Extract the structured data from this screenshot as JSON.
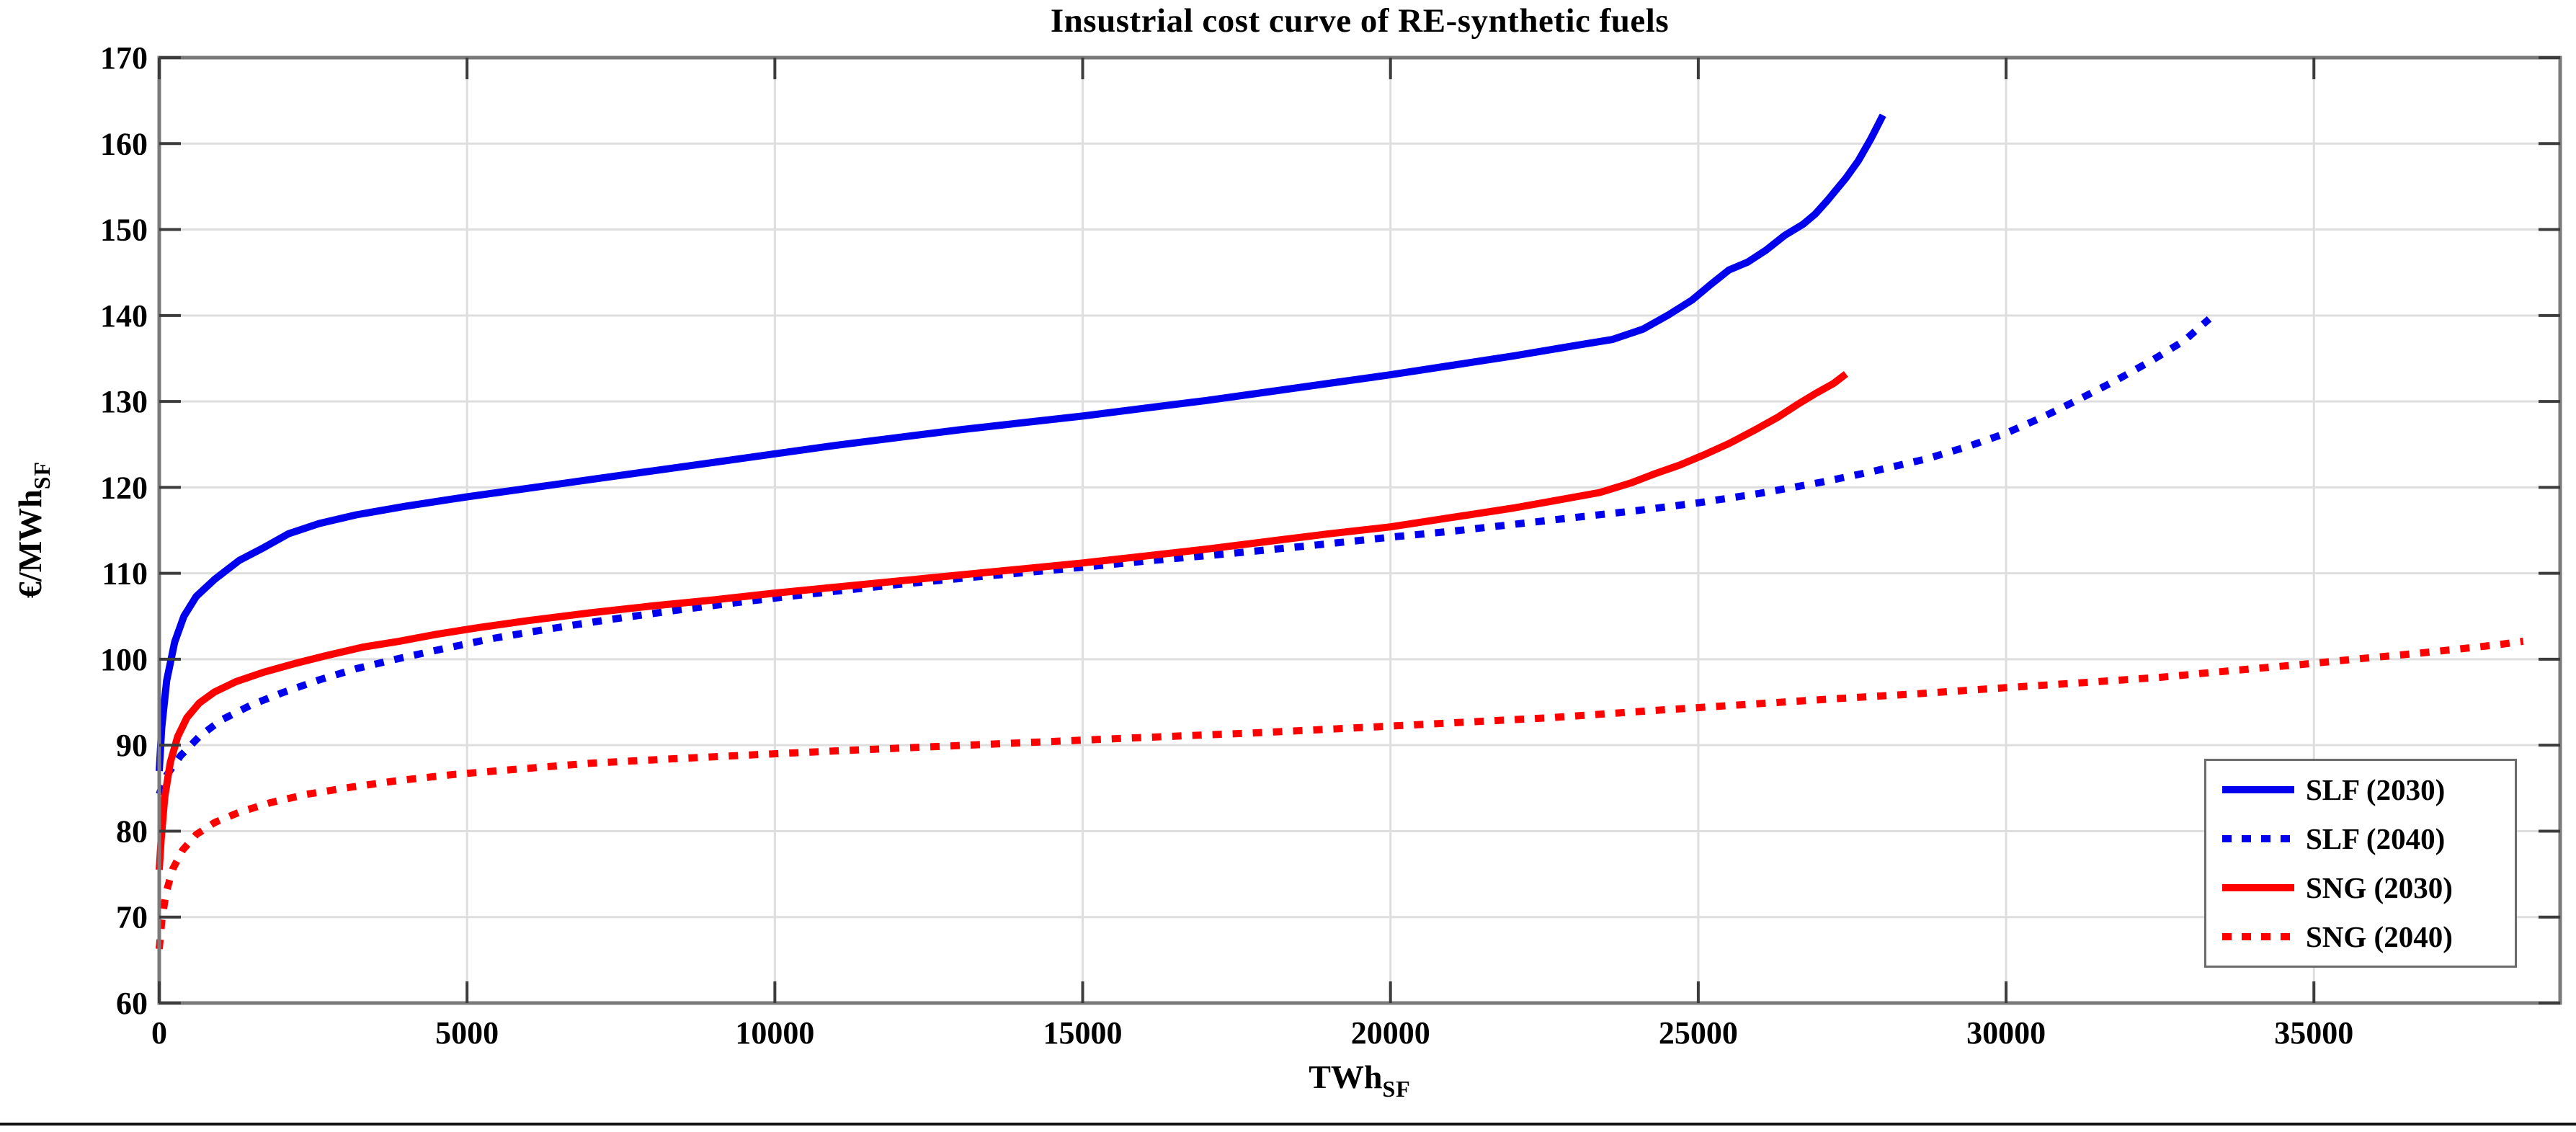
{
  "figure": {
    "background": "#ffffff"
  },
  "chart_data": {
    "type": "line",
    "title": "Insustrial cost curve of RE-synthetic fuels",
    "xlabel_main": "TWh",
    "xlabel_sub": "SF",
    "ylabel_main": "€/MWh",
    "ylabel_sub": "SF",
    "xlim": [
      0,
      39000
    ],
    "ylim": [
      60,
      170
    ],
    "xticks": [
      0,
      5000,
      10000,
      15000,
      20000,
      25000,
      30000,
      35000
    ],
    "yticks": [
      60,
      70,
      80,
      90,
      100,
      110,
      120,
      130,
      140,
      150,
      160,
      170
    ],
    "grid": true,
    "legend_position": "bottom-right",
    "colors": {
      "blue": "#0000ee",
      "red": "#ff0000",
      "grid": "#dedede",
      "axis_border": "#7a7a7a",
      "tick": "#3c3c3c",
      "text": "#000000",
      "legend_border": "#6b6b6b"
    },
    "series": [
      {
        "name": "SLF (2030)",
        "color": "blue",
        "style": "solid",
        "points": [
          [
            0,
            87
          ],
          [
            40,
            92
          ],
          [
            120,
            97.5
          ],
          [
            250,
            102
          ],
          [
            400,
            105
          ],
          [
            600,
            107.3
          ],
          [
            900,
            109.3
          ],
          [
            1300,
            111.5
          ],
          [
            1700,
            113
          ],
          [
            2100,
            114.6
          ],
          [
            2600,
            115.8
          ],
          [
            3200,
            116.8
          ],
          [
            4000,
            117.8
          ],
          [
            5000,
            118.9
          ],
          [
            6000,
            119.9
          ],
          [
            7000,
            120.9
          ],
          [
            8000,
            121.9
          ],
          [
            9000,
            122.9
          ],
          [
            10000,
            123.9
          ],
          [
            11000,
            124.9
          ],
          [
            12000,
            125.8
          ],
          [
            13000,
            126.7
          ],
          [
            14000,
            127.5
          ],
          [
            15000,
            128.3
          ],
          [
            16000,
            129.2
          ],
          [
            17000,
            130.1
          ],
          [
            18000,
            131.1
          ],
          [
            19000,
            132.1
          ],
          [
            20000,
            133.1
          ],
          [
            21000,
            134.2
          ],
          [
            22000,
            135.3
          ],
          [
            23000,
            136.5
          ],
          [
            23600,
            137.2
          ],
          [
            24100,
            138.4
          ],
          [
            24500,
            140
          ],
          [
            24900,
            141.8
          ],
          [
            25200,
            143.6
          ],
          [
            25500,
            145.3
          ],
          [
            25800,
            146.2
          ],
          [
            26100,
            147.6
          ],
          [
            26400,
            149.3
          ],
          [
            26700,
            150.6
          ],
          [
            26900,
            151.8
          ],
          [
            27100,
            153.4
          ],
          [
            27400,
            156
          ],
          [
            27600,
            158
          ],
          [
            27800,
            160.5
          ],
          [
            28000,
            163.3
          ]
        ]
      },
      {
        "name": "SLF (2040)",
        "color": "blue",
        "style": "dotted",
        "points": [
          [
            0,
            84.3
          ],
          [
            120,
            86.5
          ],
          [
            350,
            88.8
          ],
          [
            650,
            91
          ],
          [
            1000,
            92.9
          ],
          [
            1500,
            94.7
          ],
          [
            2000,
            96.1
          ],
          [
            2600,
            97.6
          ],
          [
            3200,
            98.9
          ],
          [
            3900,
            100.1
          ],
          [
            4600,
            101.2
          ],
          [
            5400,
            102.4
          ],
          [
            6300,
            103.5
          ],
          [
            7300,
            104.6
          ],
          [
            8400,
            105.7
          ],
          [
            9500,
            106.7
          ],
          [
            10700,
            107.7
          ],
          [
            12000,
            108.7
          ],
          [
            13300,
            109.6
          ],
          [
            14700,
            110.5
          ],
          [
            16000,
            111.4
          ],
          [
            17400,
            112.3
          ],
          [
            18800,
            113.3
          ],
          [
            20000,
            114.2
          ],
          [
            21000,
            114.9
          ],
          [
            22000,
            115.7
          ],
          [
            23000,
            116.5
          ],
          [
            24000,
            117.3
          ],
          [
            25000,
            118.2
          ],
          [
            26000,
            119.3
          ],
          [
            27000,
            120.6
          ],
          [
            27800,
            121.8
          ],
          [
            28700,
            123.3
          ],
          [
            29400,
            124.8
          ],
          [
            30000,
            126.3
          ],
          [
            30600,
            128.2
          ],
          [
            31200,
            130.3
          ],
          [
            31800,
            132.5
          ],
          [
            32400,
            134.9
          ],
          [
            32900,
            137.1
          ],
          [
            33300,
            139.6
          ]
        ]
      },
      {
        "name": "SNG (2030)",
        "color": "red",
        "style": "solid",
        "points": [
          [
            0,
            75.5
          ],
          [
            30,
            79
          ],
          [
            90,
            84
          ],
          [
            180,
            88
          ],
          [
            300,
            91
          ],
          [
            450,
            93.2
          ],
          [
            650,
            94.9
          ],
          [
            900,
            96.2
          ],
          [
            1250,
            97.4
          ],
          [
            1700,
            98.5
          ],
          [
            2200,
            99.5
          ],
          [
            2700,
            100.4
          ],
          [
            3300,
            101.4
          ],
          [
            3900,
            102.1
          ],
          [
            4500,
            102.9
          ],
          [
            5200,
            103.7
          ],
          [
            6000,
            104.5
          ],
          [
            7000,
            105.4
          ],
          [
            8000,
            106.2
          ],
          [
            9000,
            106.9
          ],
          [
            10000,
            107.7
          ],
          [
            11000,
            108.4
          ],
          [
            12000,
            109.1
          ],
          [
            13000,
            109.8
          ],
          [
            14000,
            110.5
          ],
          [
            15000,
            111.2
          ],
          [
            16000,
            112
          ],
          [
            17000,
            112.8
          ],
          [
            18000,
            113.7
          ],
          [
            19000,
            114.6
          ],
          [
            20000,
            115.4
          ],
          [
            21000,
            116.5
          ],
          [
            22000,
            117.6
          ],
          [
            22700,
            118.5
          ],
          [
            23400,
            119.4
          ],
          [
            23900,
            120.5
          ],
          [
            24300,
            121.6
          ],
          [
            24700,
            122.6
          ],
          [
            25100,
            123.8
          ],
          [
            25500,
            125.1
          ],
          [
            25900,
            126.6
          ],
          [
            26300,
            128.2
          ],
          [
            26600,
            129.6
          ],
          [
            26900,
            130.9
          ],
          [
            27200,
            132.1
          ],
          [
            27400,
            133.2
          ]
        ]
      },
      {
        "name": "SNG (2040)",
        "color": "red",
        "style": "dotted",
        "points": [
          [
            0,
            66.3
          ],
          [
            40,
            69.5
          ],
          [
            110,
            72.8
          ],
          [
            220,
            75.6
          ],
          [
            380,
            77.8
          ],
          [
            600,
            79.6
          ],
          [
            900,
            81
          ],
          [
            1300,
            82.2
          ],
          [
            1800,
            83.3
          ],
          [
            2400,
            84.3
          ],
          [
            3100,
            85.1
          ],
          [
            3900,
            85.9
          ],
          [
            4800,
            86.6
          ],
          [
            5800,
            87.2
          ],
          [
            7000,
            87.9
          ],
          [
            8300,
            88.4
          ],
          [
            9700,
            88.9
          ],
          [
            11200,
            89.4
          ],
          [
            12800,
            89.9
          ],
          [
            14400,
            90.4
          ],
          [
            16000,
            90.9
          ],
          [
            17700,
            91.4
          ],
          [
            19400,
            92
          ],
          [
            21000,
            92.6
          ],
          [
            22600,
            93.2
          ],
          [
            24200,
            94
          ],
          [
            25700,
            94.7
          ],
          [
            27200,
            95.4
          ],
          [
            28600,
            96
          ],
          [
            30000,
            96.7
          ],
          [
            31300,
            97.3
          ],
          [
            32500,
            97.9
          ],
          [
            33700,
            98.7
          ],
          [
            34800,
            99.4
          ],
          [
            35800,
            100.1
          ],
          [
            36700,
            100.7
          ],
          [
            37500,
            101.3
          ],
          [
            38000,
            101.7
          ],
          [
            38400,
            102.1
          ]
        ]
      }
    ]
  }
}
